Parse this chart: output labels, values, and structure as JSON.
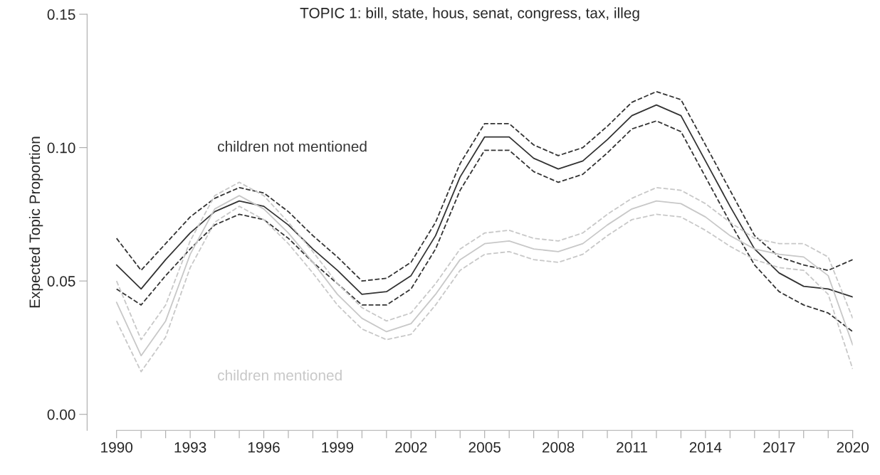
{
  "chart_data": {
    "type": "line",
    "title": "TOPIC 1: bill, state, hous, senat, congress, tax, illeg",
    "ylabel": "Expected Topic Proportion",
    "x": [
      1990,
      1991,
      1992,
      1993,
      1994,
      1995,
      1996,
      1997,
      1998,
      1999,
      2000,
      2001,
      2002,
      2003,
      2004,
      2005,
      2006,
      2007,
      2008,
      2009,
      2010,
      2011,
      2012,
      2013,
      2014,
      2015,
      2016,
      2017,
      2018,
      2019,
      2020
    ],
    "series": [
      {
        "name": "children not mentioned",
        "color": "#333333",
        "values": [
          0.056,
          0.047,
          0.058,
          0.068,
          0.076,
          0.08,
          0.078,
          0.071,
          0.062,
          0.054,
          0.045,
          0.046,
          0.052,
          0.067,
          0.089,
          0.104,
          0.104,
          0.096,
          0.092,
          0.095,
          0.103,
          0.112,
          0.116,
          0.112,
          0.095,
          0.078,
          0.062,
          0.053,
          0.048,
          0.047,
          0.044
        ]
      },
      {
        "color": "#333333",
        "line_style": "dashed",
        "values": [
          0.047,
          0.041,
          0.052,
          0.062,
          0.071,
          0.075,
          0.073,
          0.066,
          0.057,
          0.049,
          0.041,
          0.041,
          0.047,
          0.062,
          0.084,
          0.099,
          0.099,
          0.091,
          0.087,
          0.09,
          0.098,
          0.107,
          0.11,
          0.106,
          0.089,
          0.072,
          0.056,
          0.046,
          0.041,
          0.038,
          0.031
        ]
      },
      {
        "color": "#333333",
        "line_style": "dashed",
        "values": [
          0.066,
          0.054,
          0.064,
          0.074,
          0.081,
          0.085,
          0.083,
          0.076,
          0.067,
          0.059,
          0.05,
          0.051,
          0.057,
          0.072,
          0.094,
          0.109,
          0.109,
          0.101,
          0.097,
          0.1,
          0.108,
          0.117,
          0.121,
          0.118,
          0.101,
          0.084,
          0.067,
          0.059,
          0.056,
          0.054,
          0.058
        ]
      },
      {
        "name": "children mentioned",
        "color": "#c8c8c8",
        "values": [
          0.042,
          0.022,
          0.035,
          0.06,
          0.077,
          0.082,
          0.077,
          0.068,
          0.057,
          0.045,
          0.036,
          0.031,
          0.034,
          0.045,
          0.058,
          0.064,
          0.065,
          0.062,
          0.061,
          0.064,
          0.071,
          0.077,
          0.08,
          0.079,
          0.074,
          0.067,
          0.062,
          0.06,
          0.059,
          0.052,
          0.026
        ]
      },
      {
        "color": "#c8c8c8",
        "line_style": "dashed",
        "values": [
          0.035,
          0.016,
          0.029,
          0.055,
          0.072,
          0.078,
          0.073,
          0.064,
          0.053,
          0.041,
          0.032,
          0.028,
          0.03,
          0.041,
          0.054,
          0.06,
          0.061,
          0.058,
          0.057,
          0.06,
          0.067,
          0.073,
          0.075,
          0.074,
          0.069,
          0.063,
          0.058,
          0.055,
          0.054,
          0.045,
          0.017
        ]
      },
      {
        "color": "#c8c8c8",
        "line_style": "dashed",
        "values": [
          0.05,
          0.028,
          0.041,
          0.065,
          0.082,
          0.087,
          0.082,
          0.072,
          0.061,
          0.049,
          0.04,
          0.035,
          0.038,
          0.049,
          0.062,
          0.068,
          0.069,
          0.066,
          0.065,
          0.068,
          0.075,
          0.081,
          0.085,
          0.084,
          0.079,
          0.072,
          0.066,
          0.064,
          0.064,
          0.059,
          0.036
        ]
      }
    ],
    "xlim": [
      1988.8,
      2020
    ],
    "xticks": [
      1990,
      {
        "value": 1991,
        "label": null
      },
      {
        "value": 1992,
        "label": null
      },
      1993,
      {
        "value": 1994,
        "label": null
      },
      {
        "value": 1995,
        "label": null
      },
      1996,
      {
        "value": 1997,
        "label": null
      },
      {
        "value": 1998,
        "label": null
      },
      1999,
      {
        "value": 2000,
        "label": null
      },
      {
        "value": 2001,
        "label": null
      },
      2002,
      {
        "value": 2003,
        "label": null
      },
      {
        "value": 2004,
        "label": null
      },
      2005,
      {
        "value": 2006,
        "label": null
      },
      {
        "value": 2007,
        "label": null
      },
      2008,
      {
        "value": 2009,
        "label": null
      },
      {
        "value": 2010,
        "label": null
      },
      2011,
      {
        "value": 2012,
        "label": null
      },
      {
        "value": 2013,
        "label": null
      },
      2014,
      {
        "value": 2015,
        "label": null
      },
      {
        "value": 2016,
        "label": null
      },
      2017,
      {
        "value": 2018,
        "label": null
      },
      {
        "value": 2019,
        "label": null
      },
      2020
    ],
    "ylim": [
      -0.006,
      0.15
    ],
    "yticks": [
      {
        "value": 0,
        "label": "0.00"
      },
      {
        "value": 0.05,
        "label": "0.05"
      },
      {
        "value": 0.1,
        "label": "0.10"
      },
      {
        "value": 0.15,
        "label": "0.15"
      }
    ],
    "grid": false,
    "legend": false,
    "line_style": "solid",
    "marker": "none"
  }
}
